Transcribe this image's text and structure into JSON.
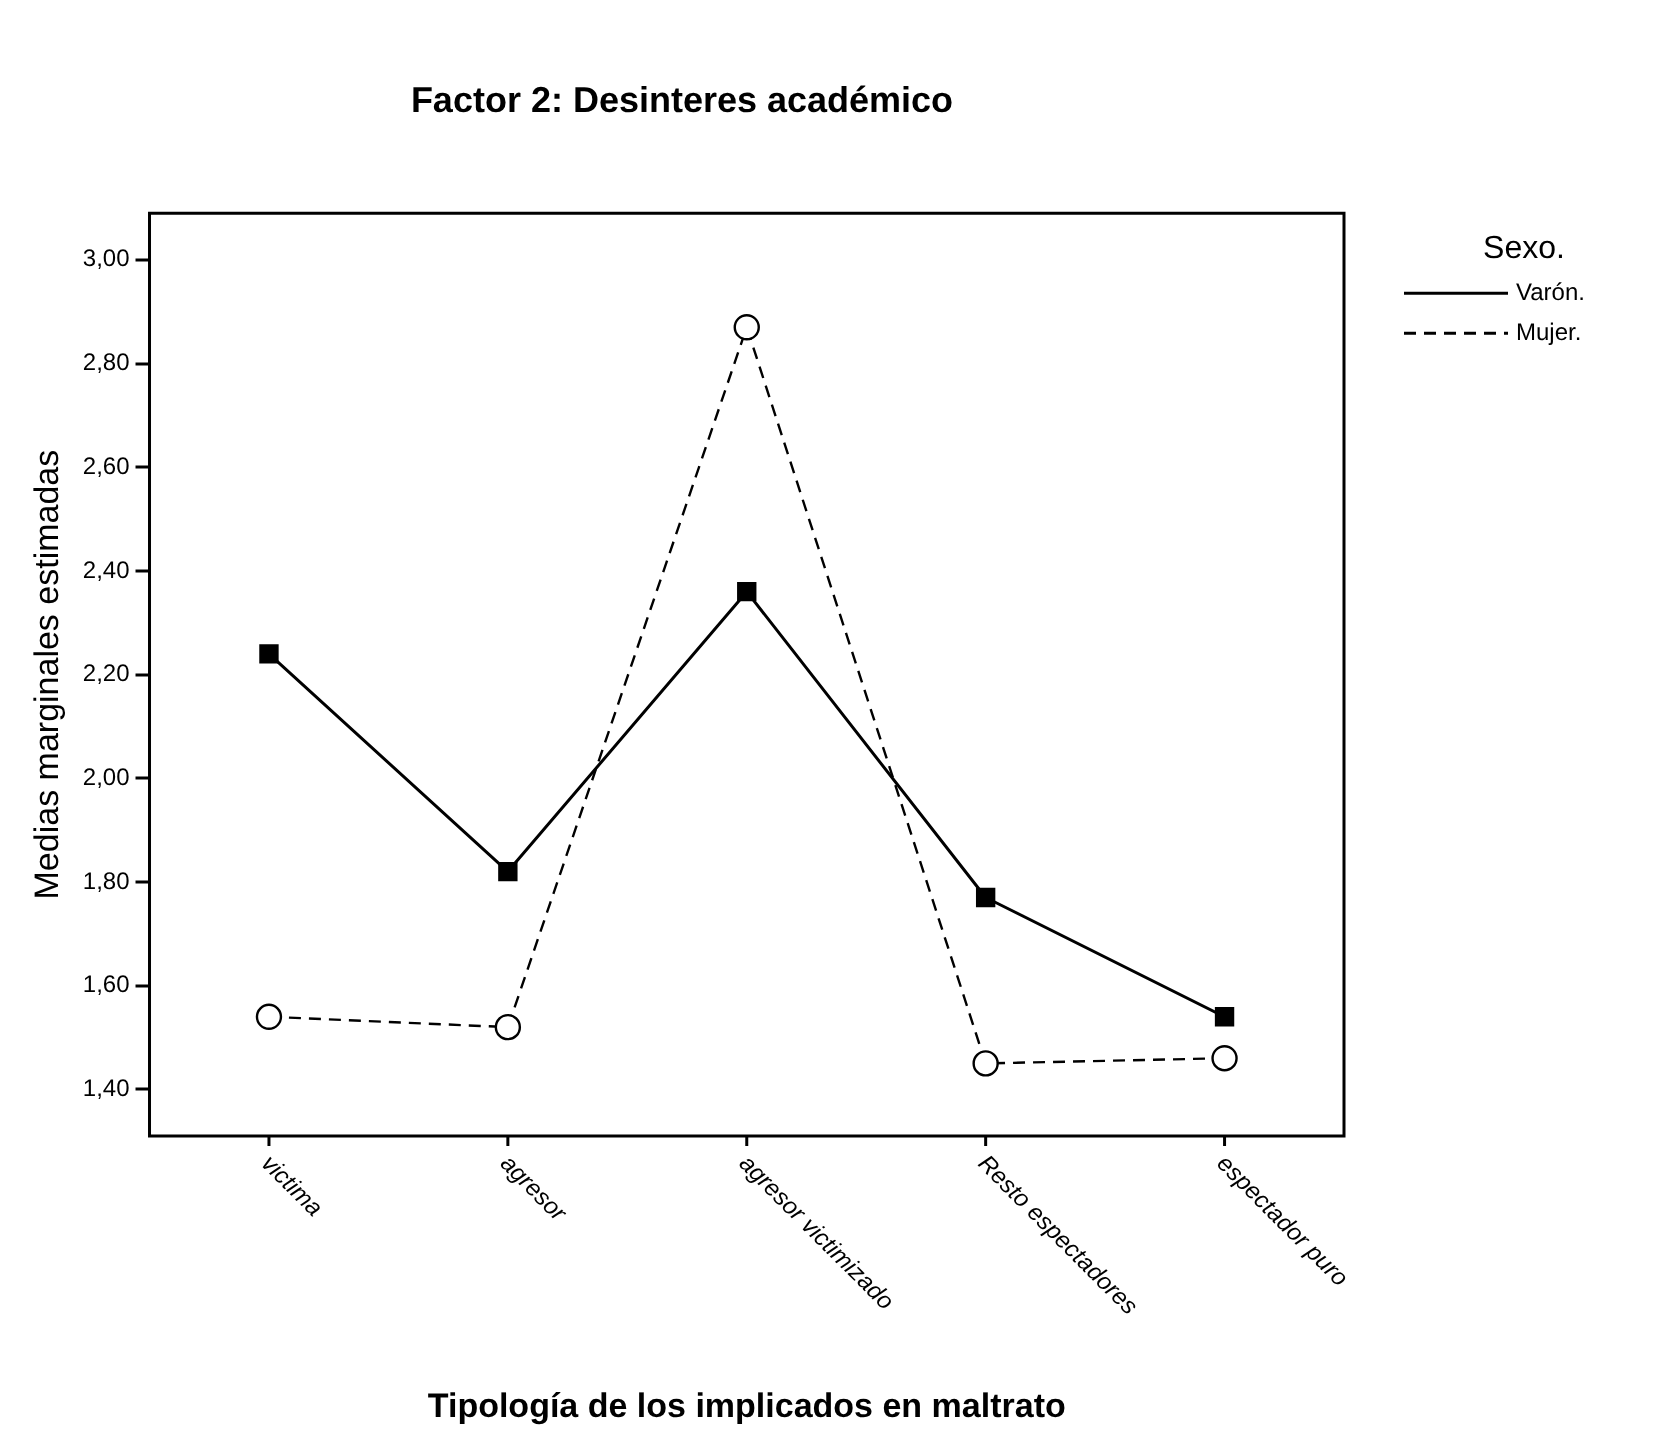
{
  "chart_data": {
    "type": "line",
    "title": "Factor 2: Desinteres académico",
    "xlabel": "Tipología de los implicados en maltrato",
    "ylabel": "Medias marginales estimadas",
    "legend_title": "Sexo.",
    "legend": "top right",
    "grid": false,
    "categories": [
      "victima",
      "agresor",
      "agresor victimizado",
      "Resto espectadores",
      "espectador puro"
    ],
    "ylim": [
      1.31,
      3.09
    ],
    "yticks": [
      {
        "value": 1.4,
        "label": "1,40"
      },
      {
        "value": 1.6,
        "label": "1,60"
      },
      {
        "value": 1.8,
        "label": "1,80"
      },
      {
        "value": 2.0,
        "label": "2,00"
      },
      {
        "value": 2.2,
        "label": "2,20"
      },
      {
        "value": 2.4,
        "label": "2,40"
      },
      {
        "value": 2.6,
        "label": "2,60"
      },
      {
        "value": 2.8,
        "label": "2,80"
      },
      {
        "value": 3.0,
        "label": "3,00"
      }
    ],
    "series": [
      {
        "name": "Varón.",
        "color": "#000000",
        "values": [
          2.24,
          1.82,
          2.36,
          1.77,
          1.54
        ],
        "marker": "square",
        "line_style": "solid"
      },
      {
        "name": "Mujer.",
        "color": "#000000",
        "values": [
          1.54,
          1.52,
          2.87,
          1.45,
          1.46
        ],
        "marker": "circle",
        "line_style": "dashed"
      }
    ]
  }
}
